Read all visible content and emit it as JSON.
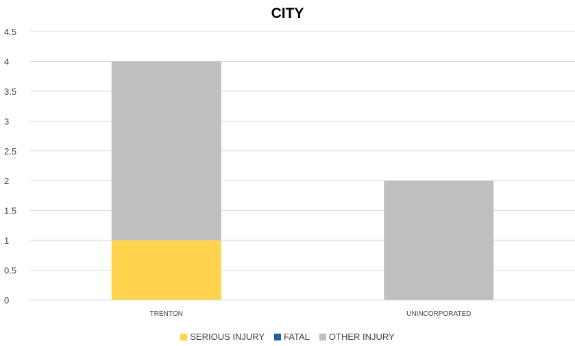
{
  "chart_data": {
    "type": "bar",
    "stacked": true,
    "title": "CITY",
    "xlabel": "",
    "ylabel": "",
    "categories": [
      "TRENTON",
      "UNINCORPORATED"
    ],
    "series": [
      {
        "name": "SERIOUS INJURY",
        "values": [
          1,
          0
        ],
        "color": "#FFD34E"
      },
      {
        "name": "FATAL",
        "values": [
          0,
          0
        ],
        "color": "#1F5FA8"
      },
      {
        "name": "OTHER INJURY",
        "values": [
          3,
          2
        ],
        "color": "#BFBFBF"
      }
    ],
    "ylim": [
      0,
      4.5
    ],
    "yticks": [
      "0",
      "0.5",
      "1",
      "1.5",
      "2",
      "2.5",
      "3",
      "3.5",
      "4",
      "4.5"
    ],
    "grid": true,
    "legend": "bottom"
  }
}
